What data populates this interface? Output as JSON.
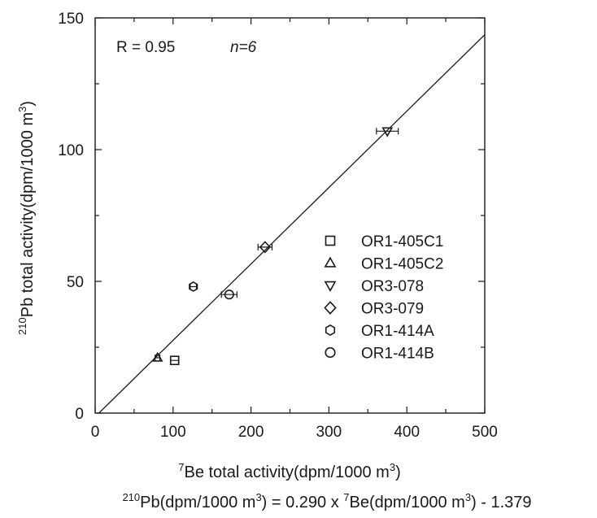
{
  "chart_data": {
    "type": "scatter",
    "xlim": [
      0,
      500
    ],
    "ylim": [
      0,
      150
    ],
    "x_ticks": [
      0,
      100,
      200,
      300,
      400,
      500
    ],
    "y_ticks": [
      0,
      50,
      100,
      150
    ],
    "x_minor_step": 50,
    "y_minor_step": 25,
    "grid": false,
    "legend_position": "right-center",
    "xlabel": {
      "sup": "7",
      "text": "Be total activity(dpm/1000 m",
      "unit_sup": "3",
      "close": ")"
    },
    "ylabel": {
      "sup": "210",
      "text": "Pb total activity(dpm/1000 m",
      "unit_sup": "3",
      "close": ")"
    },
    "annotations": {
      "r_text": "R = 0.95",
      "n_text": "n=6"
    },
    "equation": {
      "p1_sup": "210",
      "p1": "Pb(dpm/1000 m",
      "p1_unit_sup": "3",
      "p2": ") = 0.290 x ",
      "p2_sup": "7",
      "p3": "Be(dpm/1000 m",
      "p3_unit_sup": "3",
      "p4": ") - 1.379"
    },
    "fit_line": {
      "slope": 0.29,
      "intercept": -1.379,
      "x_range": [
        4.76,
        500
      ]
    },
    "series": [
      {
        "name": "OR1-405C1",
        "marker": "square",
        "points": [
          {
            "x": 102,
            "y": 20,
            "xerr": 5
          }
        ]
      },
      {
        "name": "OR1-405C2",
        "marker": "triangle-up",
        "points": [
          {
            "x": 80,
            "y": 21,
            "xerr": 3
          }
        ]
      },
      {
        "name": "OR3-078",
        "marker": "triangle-down",
        "points": [
          {
            "x": 375,
            "y": 107,
            "xerr": 14
          }
        ]
      },
      {
        "name": "OR3-079",
        "marker": "diamond",
        "points": [
          {
            "x": 218,
            "y": 63,
            "xerr": 9
          }
        ]
      },
      {
        "name": "OR1-414A",
        "marker": "hexagon",
        "points": [
          {
            "x": 126,
            "y": 48,
            "xerr": 4
          }
        ]
      },
      {
        "name": "OR1-414B",
        "marker": "circle",
        "points": [
          {
            "x": 172,
            "y": 45,
            "xerr": 10
          }
        ]
      }
    ]
  }
}
